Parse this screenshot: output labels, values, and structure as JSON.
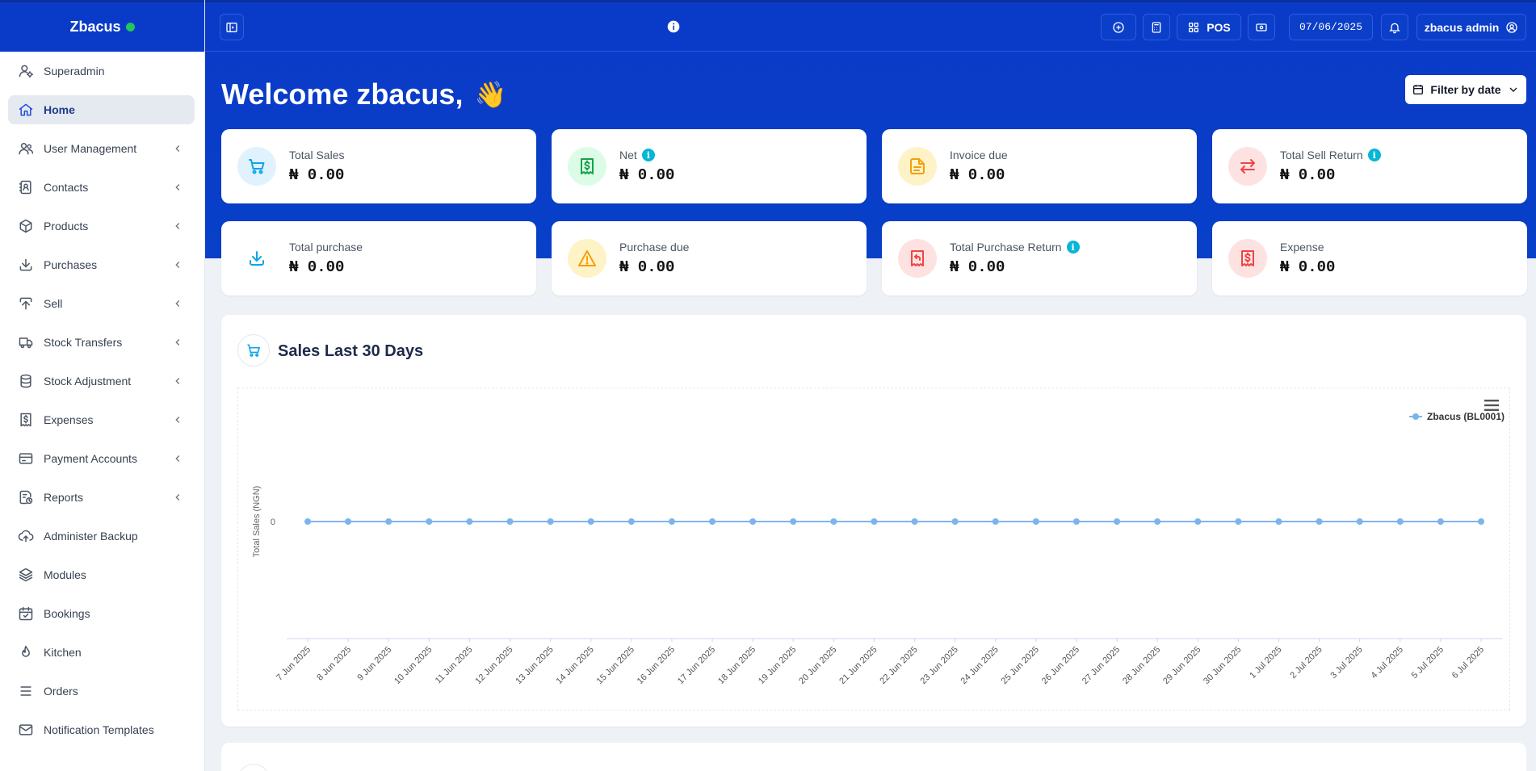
{
  "brand": {
    "name": "Zbacus",
    "status_color": "#22c55e"
  },
  "header": {
    "pos_label": "POS",
    "date": "07/06/2025",
    "user": "zbacus admin"
  },
  "sidebar": {
    "items": [
      {
        "label": "Superadmin",
        "icon": "user-gear-icon",
        "has_submenu": false,
        "active": false
      },
      {
        "label": "Home",
        "icon": "home-icon",
        "has_submenu": false,
        "active": true
      },
      {
        "label": "User Management",
        "icon": "users-icon",
        "has_submenu": true,
        "active": false
      },
      {
        "label": "Contacts",
        "icon": "address-book-icon",
        "has_submenu": true,
        "active": false
      },
      {
        "label": "Products",
        "icon": "cube-icon",
        "has_submenu": true,
        "active": false
      },
      {
        "label": "Purchases",
        "icon": "download-icon",
        "has_submenu": true,
        "active": false
      },
      {
        "label": "Sell",
        "icon": "upload-icon",
        "has_submenu": true,
        "active": false
      },
      {
        "label": "Stock Transfers",
        "icon": "truck-icon",
        "has_submenu": true,
        "active": false
      },
      {
        "label": "Stock Adjustment",
        "icon": "database-icon",
        "has_submenu": true,
        "active": false
      },
      {
        "label": "Expenses",
        "icon": "dollar-receipt-icon",
        "has_submenu": true,
        "active": false
      },
      {
        "label": "Payment Accounts",
        "icon": "credit-card-icon",
        "has_submenu": true,
        "active": false
      },
      {
        "label": "Reports",
        "icon": "report-icon",
        "has_submenu": true,
        "active": false
      },
      {
        "label": "Administer Backup",
        "icon": "cloud-upload-icon",
        "has_submenu": false,
        "active": false
      },
      {
        "label": "Modules",
        "icon": "layers-icon",
        "has_submenu": false,
        "active": false
      },
      {
        "label": "Bookings",
        "icon": "calendar-check-icon",
        "has_submenu": false,
        "active": false
      },
      {
        "label": "Kitchen",
        "icon": "flame-icon",
        "has_submenu": false,
        "active": false
      },
      {
        "label": "Orders",
        "icon": "list-icon",
        "has_submenu": false,
        "active": false
      },
      {
        "label": "Notification Templates",
        "icon": "envelope-icon",
        "has_submenu": false,
        "active": false
      }
    ]
  },
  "welcome": {
    "text": "Welcome zbacus,",
    "emoji": "👋"
  },
  "filter": {
    "label": "Filter by date"
  },
  "cards": [
    {
      "label": "Total Sales",
      "value": "₦ 0.00",
      "icon": "cart-icon",
      "info": false,
      "color": "#0ea5e9",
      "bg": "#e0f2fe"
    },
    {
      "label": "Net",
      "value": "₦ 0.00",
      "icon": "dollar-receipt-icon",
      "info": true,
      "color": "#16a34a",
      "bg": "#dcfce7"
    },
    {
      "label": "Invoice due",
      "value": "₦ 0.00",
      "icon": "file-icon",
      "info": false,
      "color": "#f59e0b",
      "bg": "#fef3c7"
    },
    {
      "label": "Total Sell Return",
      "value": "₦ 0.00",
      "icon": "arrows-exchange-icon",
      "info": true,
      "color": "#ef4444",
      "bg": "#fee2e2"
    },
    {
      "label": "Total purchase",
      "value": "₦ 0.00",
      "icon": "download-icon",
      "info": false,
      "color": "#0ea5e9",
      "bg": "#ffffff"
    },
    {
      "label": "Purchase due",
      "value": "₦ 0.00",
      "icon": "warning-icon",
      "info": false,
      "color": "#f59e0b",
      "bg": "#fef3c7"
    },
    {
      "label": "Total Purchase Return",
      "value": "₦ 0.00",
      "icon": "receipt-refund-icon",
      "info": true,
      "color": "#ef4444",
      "bg": "#fee2e2"
    },
    {
      "label": "Expense",
      "value": "₦ 0.00",
      "icon": "dollar-receipt-icon",
      "info": false,
      "color": "#ef4444",
      "bg": "#fee2e2"
    }
  ],
  "chart_panel": {
    "title": "Sales Last 30 Days"
  },
  "chart_data": {
    "type": "line",
    "title": "",
    "xlabel": "",
    "ylabel": "Total Sales (NGN)",
    "y_ticks": [
      "0"
    ],
    "categories": [
      "7 Jun 2025",
      "8 Jun 2025",
      "9 Jun 2025",
      "10 Jun 2025",
      "11 Jun 2025",
      "12 Jun 2025",
      "13 Jun 2025",
      "14 Jun 2025",
      "15 Jun 2025",
      "16 Jun 2025",
      "17 Jun 2025",
      "18 Jun 2025",
      "19 Jun 2025",
      "20 Jun 2025",
      "21 Jun 2025",
      "22 Jun 2025",
      "23 Jun 2025",
      "24 Jun 2025",
      "25 Jun 2025",
      "26 Jun 2025",
      "27 Jun 2025",
      "28 Jun 2025",
      "29 Jun 2025",
      "30 Jun 2025",
      "1 Jul 2025",
      "2 Jul 2025",
      "3 Jul 2025",
      "4 Jul 2025",
      "5 Jul 2025",
      "6 Jul 2025"
    ],
    "series": [
      {
        "name": "Zbacus (BL0001)",
        "color": "#7cb5ec",
        "values": [
          0,
          0,
          0,
          0,
          0,
          0,
          0,
          0,
          0,
          0,
          0,
          0,
          0,
          0,
          0,
          0,
          0,
          0,
          0,
          0,
          0,
          0,
          0,
          0,
          0,
          0,
          0,
          0,
          0,
          0
        ]
      }
    ],
    "legend": "top-right",
    "grid": false
  }
}
